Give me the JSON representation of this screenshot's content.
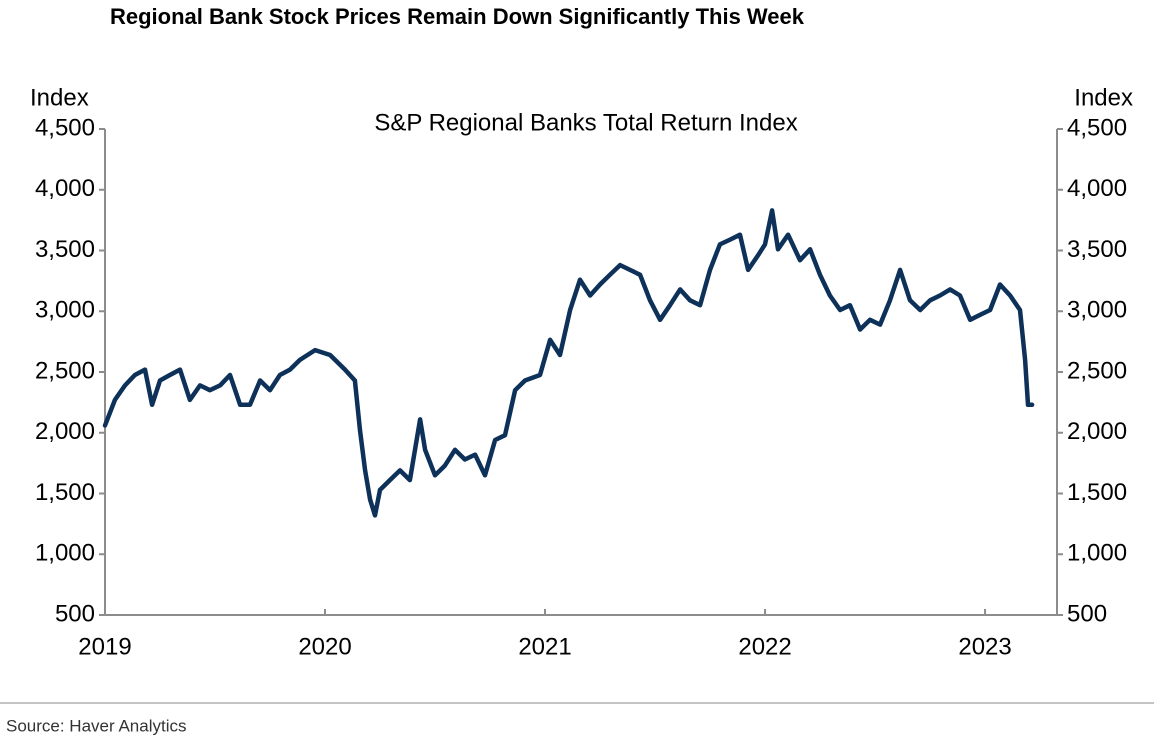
{
  "chart_data": {
    "type": "line",
    "title": "Regional Bank Stock Prices Remain Down Significantly This Week",
    "subtitle": "S&P Regional Banks Total Return Index",
    "ylabel": "Index",
    "y2label": "Index",
    "source": "Source: Haver Analytics",
    "color": "#0d3159",
    "x": [
      2019.0,
      2019.045,
      2019.091,
      2019.136,
      2019.182,
      2019.214,
      2019.25,
      2019.295,
      2019.341,
      2019.386,
      2019.432,
      2019.477,
      2019.523,
      2019.568,
      2019.614,
      2019.659,
      2019.705,
      2019.75,
      2019.795,
      2019.841,
      2019.886,
      2019.955,
      2020.023,
      2020.091,
      2020.136,
      2020.159,
      2020.182,
      2020.205,
      2020.227,
      2020.25,
      2020.295,
      2020.341,
      2020.386,
      2020.432,
      2020.455,
      2020.5,
      2020.545,
      2020.591,
      2020.636,
      2020.682,
      2020.727,
      2020.773,
      2020.818,
      2020.864,
      2020.909,
      2020.977,
      2021.023,
      2021.068,
      2021.114,
      2021.159,
      2021.205,
      2021.25,
      2021.295,
      2021.341,
      2021.386,
      2021.432,
      2021.477,
      2021.523,
      2021.568,
      2021.614,
      2021.659,
      2021.705,
      2021.75,
      2021.795,
      2021.841,
      2021.886,
      2021.923,
      2021.968,
      2022.0,
      2022.032,
      2022.059,
      2022.105,
      2022.159,
      2022.205,
      2022.25,
      2022.295,
      2022.341,
      2022.386,
      2022.432,
      2022.477,
      2022.523,
      2022.568,
      2022.614,
      2022.659,
      2022.705,
      2022.75,
      2022.795,
      2022.841,
      2022.886,
      2022.932,
      2022.977,
      2023.023,
      2023.068,
      2023.114,
      2023.159,
      2023.182,
      2023.195,
      2023.214
    ],
    "values": [
      2060,
      2270,
      2390,
      2475,
      2520,
      2230,
      2430,
      2475,
      2520,
      2270,
      2390,
      2350,
      2390,
      2475,
      2230,
      2230,
      2430,
      2350,
      2475,
      2520,
      2600,
      2680,
      2640,
      2520,
      2430,
      2020,
      1690,
      1450,
      1320,
      1530,
      1610,
      1690,
      1610,
      2110,
      1860,
      1650,
      1730,
      1860,
      1780,
      1820,
      1650,
      1940,
      1980,
      2350,
      2430,
      2475,
      2765,
      2640,
      3010,
      3260,
      3130,
      3220,
      3300,
      3380,
      3340,
      3300,
      3090,
      2930,
      3050,
      3180,
      3090,
      3050,
      3340,
      3550,
      3590,
      3630,
      3340,
      3460,
      3550,
      3830,
      3510,
      3630,
      3420,
      3510,
      3300,
      3130,
      3010,
      3050,
      2850,
      2930,
      2890,
      3090,
      3340,
      3090,
      3010,
      3090,
      3130,
      3180,
      3130,
      2930,
      2970,
      3010,
      3220,
      3130,
      3010,
      2600,
      2230,
      2230
    ],
    "xlim": [
      2019,
      2023.327
    ],
    "xticks": [
      2019,
      2020,
      2021,
      2022,
      2023
    ],
    "ylim": [
      500,
      4500
    ],
    "yticks": [
      500,
      {
        "value": 1000,
        "label": "1,000"
      },
      {
        "value": 1500,
        "label": "1,500"
      },
      {
        "value": 2000,
        "label": "2,000"
      },
      {
        "value": 2500,
        "label": "2,500"
      },
      {
        "value": 3000,
        "label": "3,000"
      },
      {
        "value": 3500,
        "label": "3,500"
      },
      {
        "value": 4000,
        "label": "4,000"
      },
      {
        "value": 4500,
        "label": "4,500"
      }
    ],
    "y2lim": [
      500,
      4500
    ],
    "y2ticks": [
      500,
      {
        "value": 1000,
        "label": "1,000"
      },
      {
        "value": 1500,
        "label": "1,500"
      },
      {
        "value": 2000,
        "label": "2,000"
      },
      {
        "value": 2500,
        "label": "2,500"
      },
      {
        "value": 3000,
        "label": "3,000"
      },
      {
        "value": 3500,
        "label": "3,500"
      },
      {
        "value": 4000,
        "label": "4,000"
      },
      {
        "value": 4500,
        "label": "4,500"
      }
    ]
  }
}
